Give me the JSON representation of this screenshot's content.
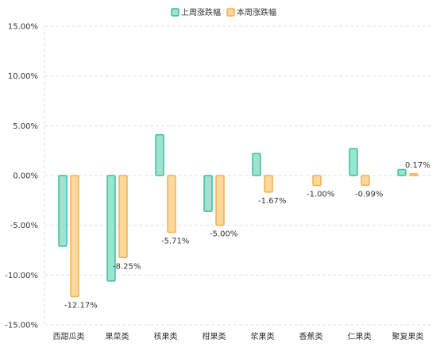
{
  "chart_data": {
    "type": "bar",
    "categories": [
      "西甜瓜类",
      "果菜类",
      "核果类",
      "柑果类",
      "浆果类",
      "香蕉类",
      "仁果类",
      "聚复果类"
    ],
    "series": [
      {
        "name": "上周涨跌幅",
        "values": [
          -7.1,
          -10.6,
          4.1,
          -3.6,
          2.2,
          null,
          2.7,
          0.6
        ],
        "color": "#3dbf9c",
        "fill": "#9ee2cf"
      },
      {
        "name": "本周涨跌幅",
        "values": [
          -12.17,
          -8.25,
          -5.71,
          -5.0,
          -1.67,
          -1.0,
          -0.99,
          0.17
        ],
        "color": "#f2b04f",
        "fill": "#fdd79c"
      }
    ],
    "data_labels": [
      "-12.17%",
      "-8.25%",
      "-5.71%",
      "-5.00%",
      "-1.67%",
      "-1.00%",
      "-0.99%",
      "0.17%"
    ],
    "y_ticks": [
      15,
      10,
      5,
      0,
      -5,
      -10,
      -15
    ],
    "y_tick_labels": [
      "15.00%",
      "10.00%",
      "5.00%",
      "0.00%",
      "-5.00%",
      "-10.00%",
      "-15.00%"
    ],
    "ylim": [
      -15,
      15
    ],
    "unit": "%",
    "grid": true,
    "legend": "top-center"
  }
}
